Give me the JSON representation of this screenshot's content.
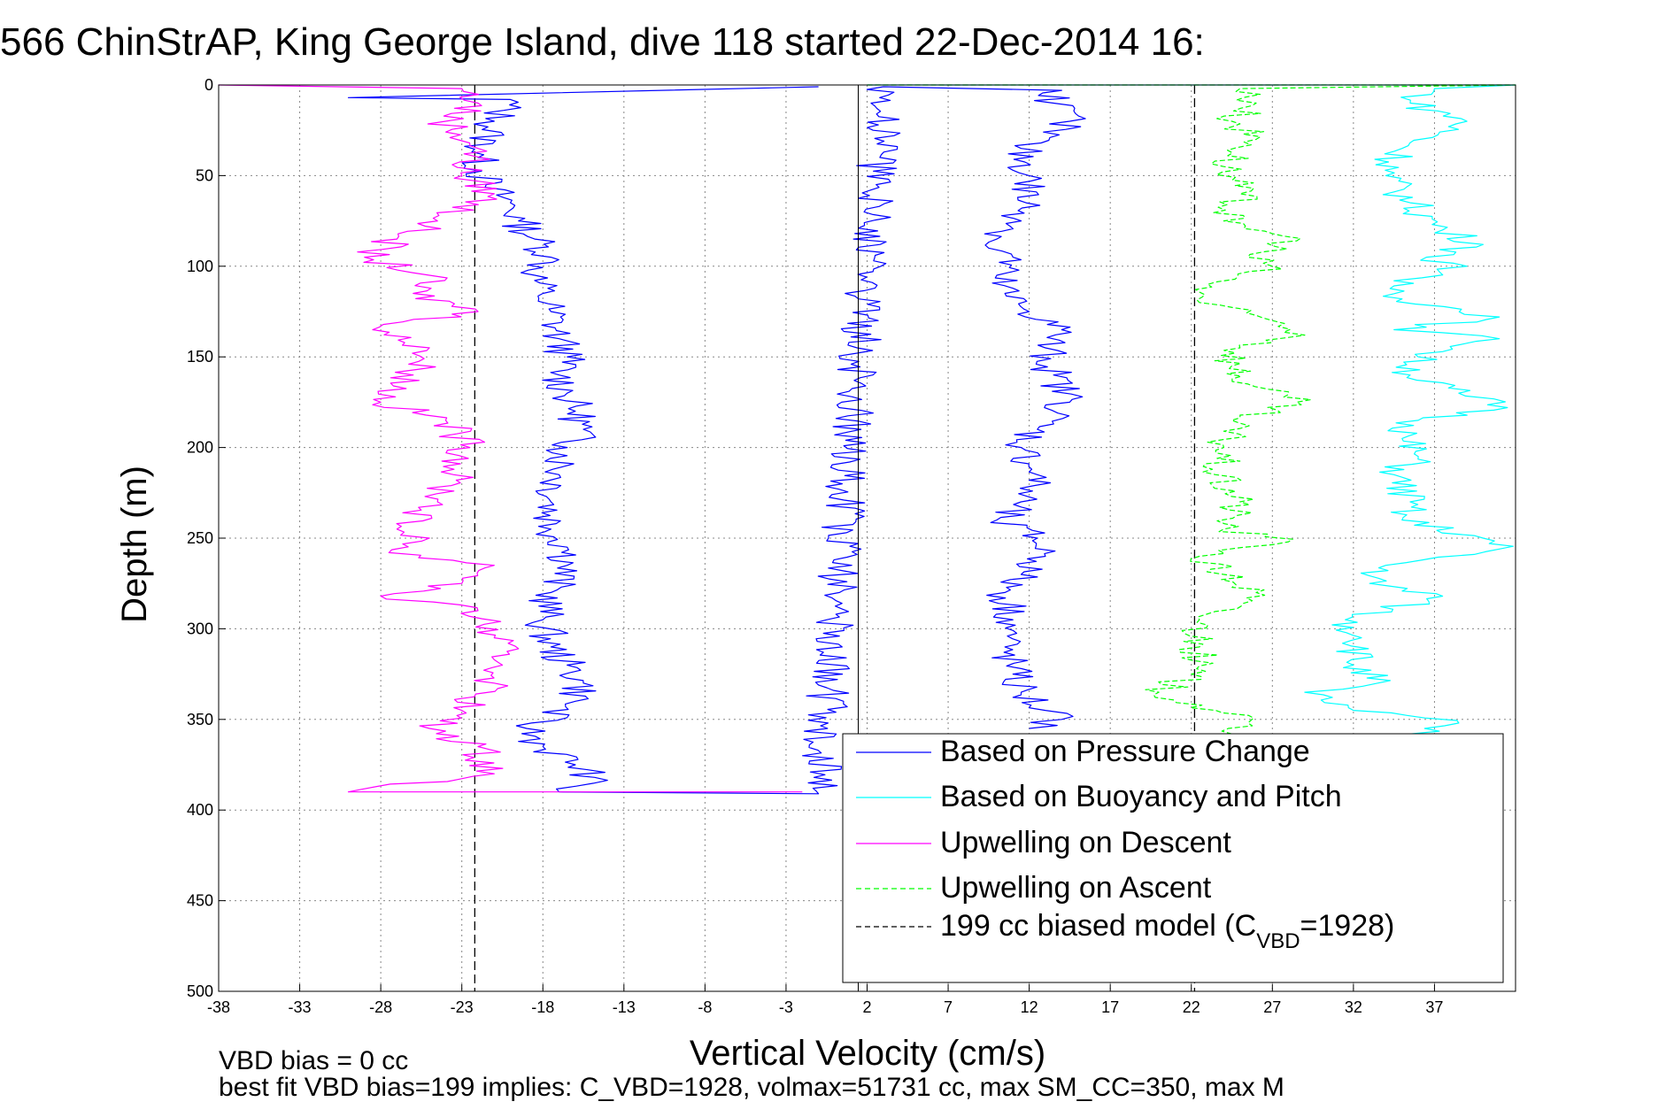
{
  "chart_data": {
    "type": "line",
    "title": "566 ChinStrAP, King George Island, dive 118 started 22-Dec-2014 16:",
    "xlabel": "Vertical Velocity (cm/s)",
    "ylabel": "Depth (m)",
    "xlim": [
      -38,
      42
    ],
    "ylim": [
      0,
      500
    ],
    "y_reversed": true,
    "x_ticks": [
      -38,
      -33,
      -28,
      -23,
      -18,
      -13,
      -8,
      -3,
      2,
      7,
      12,
      17,
      22,
      27,
      32,
      37
    ],
    "y_ticks": [
      0,
      50,
      100,
      150,
      200,
      250,
      300,
      350,
      400,
      450,
      500
    ],
    "grid": true,
    "legend_position": "bottom-right",
    "series": [
      {
        "name": "Based on Pressure Change",
        "color": "#0000ff",
        "style": "solid",
        "points": [
          [
            -1,
            1
          ],
          [
            -30,
            7
          ],
          [
            -20,
            8
          ],
          [
            -21,
            20
          ],
          [
            -22,
            40
          ],
          [
            -21.5,
            55
          ],
          [
            -20,
            65
          ],
          [
            -19.5,
            75
          ],
          [
            -18.5,
            85
          ],
          [
            -17.5,
            95
          ],
          [
            -18.5,
            105
          ],
          [
            -18,
            115
          ],
          [
            -17.5,
            125
          ],
          [
            -17,
            140
          ],
          [
            -16.5,
            150
          ],
          [
            -17,
            160
          ],
          [
            -16.5,
            170
          ],
          [
            -16,
            180
          ],
          [
            -15.5,
            190
          ],
          [
            -16.5,
            200
          ],
          [
            -17,
            215
          ],
          [
            -17.5,
            230
          ],
          [
            -17.5,
            245
          ],
          [
            -16.5,
            255
          ],
          [
            -16.5,
            265
          ],
          [
            -17.5,
            280
          ],
          [
            -18,
            295
          ],
          [
            -17.5,
            310
          ],
          [
            -16.5,
            320
          ],
          [
            -15.5,
            330
          ],
          [
            -16,
            340
          ],
          [
            -19,
            355
          ],
          [
            -18,
            365
          ],
          [
            -16,
            375
          ],
          [
            -14.8,
            382
          ],
          [
            -17,
            390
          ],
          [
            -1,
            391
          ],
          [
            3,
            1
          ],
          [
            14,
            3
          ],
          [
            13.5,
            10
          ],
          [
            14.5,
            20
          ],
          [
            11.5,
            35
          ],
          [
            12,
            50
          ],
          [
            11.8,
            65
          ],
          [
            11.5,
            75
          ],
          [
            10,
            85
          ],
          [
            9.5,
            90
          ],
          [
            11,
            95
          ],
          [
            10,
            105
          ],
          [
            10.5,
            115
          ],
          [
            12,
            125
          ],
          [
            14,
            135
          ],
          [
            13,
            145
          ],
          [
            13.5,
            160
          ],
          [
            14.5,
            175
          ],
          [
            12.5,
            190
          ],
          [
            11.5,
            200
          ],
          [
            12.5,
            215
          ],
          [
            11.5,
            230
          ],
          [
            10,
            240
          ],
          [
            12.5,
            250
          ],
          [
            13,
            260
          ],
          [
            11.5,
            270
          ],
          [
            10.5,
            280
          ],
          [
            11,
            295
          ],
          [
            10.5,
            310
          ],
          [
            11,
            325
          ],
          [
            11.5,
            335
          ],
          [
            13,
            345
          ],
          [
            14,
            350
          ],
          [
            12,
            355
          ]
        ]
      },
      {
        "name": "Based on Buoyancy and Pitch",
        "color": "#00ffff",
        "style": "solid",
        "points": [
          [
            2,
            0
          ],
          [
            42,
            0
          ],
          [
            37,
            2
          ],
          [
            35.5,
            10
          ],
          [
            39,
            20
          ],
          [
            35,
            35
          ],
          [
            34,
            50
          ],
          [
            35.5,
            65
          ],
          [
            37.5,
            80
          ],
          [
            40,
            88
          ],
          [
            36.5,
            95
          ],
          [
            39,
            100
          ],
          [
            34.5,
            108
          ],
          [
            35,
            118
          ],
          [
            41,
            128
          ],
          [
            34.5,
            135
          ],
          [
            41,
            140
          ],
          [
            36,
            150
          ],
          [
            35.5,
            160
          ],
          [
            38.5,
            170
          ],
          [
            41.5,
            178
          ],
          [
            36,
            185
          ],
          [
            35,
            195
          ],
          [
            36,
            205
          ],
          [
            34.5,
            215
          ],
          [
            35.5,
            230
          ],
          [
            35,
            240
          ],
          [
            40,
            250
          ],
          [
            41,
            256
          ],
          [
            34,
            265
          ],
          [
            33,
            275
          ],
          [
            37.5,
            282
          ],
          [
            31.5,
            295
          ],
          [
            32.5,
            305
          ],
          [
            32,
            320
          ],
          [
            33.5,
            330
          ],
          [
            29,
            335
          ],
          [
            32,
            345
          ],
          [
            38.5,
            352
          ],
          [
            35.5,
            358
          ]
        ]
      },
      {
        "name": "Upwelling on Descent",
        "color": "#ff00ff",
        "style": "solid",
        "points": [
          [
            -38,
            0
          ],
          [
            -23,
            2
          ],
          [
            -22,
            10
          ],
          [
            -24,
            20
          ],
          [
            -22,
            35
          ],
          [
            -23,
            50
          ],
          [
            -21,
            60
          ],
          [
            -24.5,
            75
          ],
          [
            -27,
            85
          ],
          [
            -29,
            95
          ],
          [
            -25,
            105
          ],
          [
            -26,
            115
          ],
          [
            -22,
            125
          ],
          [
            -28.5,
            135
          ],
          [
            -25,
            145
          ],
          [
            -26,
            160
          ],
          [
            -28,
            175
          ],
          [
            -24,
            185
          ],
          [
            -22.5,
            200
          ],
          [
            -23.5,
            215
          ],
          [
            -24.5,
            230
          ],
          [
            -27,
            245
          ],
          [
            -25,
            250
          ],
          [
            -27.5,
            258
          ],
          [
            -21,
            265
          ],
          [
            -23,
            275
          ],
          [
            -28,
            282
          ],
          [
            -22,
            290
          ],
          [
            -21,
            305
          ],
          [
            -20.5,
            320
          ],
          [
            -21,
            330
          ],
          [
            -23,
            345
          ],
          [
            -25,
            355
          ],
          [
            -22,
            365
          ],
          [
            -21,
            380
          ],
          [
            -30,
            390
          ],
          [
            -2,
            390
          ]
        ]
      },
      {
        "name": "Upwelling on Ascent",
        "color": "#00ff00",
        "style": "dashed",
        "points": [
          [
            2,
            0
          ],
          [
            42,
            0
          ],
          [
            25,
            2
          ],
          [
            26,
            10
          ],
          [
            24.5,
            20
          ],
          [
            26,
            30
          ],
          [
            24,
            45
          ],
          [
            25,
            60
          ],
          [
            24,
            75
          ],
          [
            27,
            82
          ],
          [
            28.5,
            86
          ],
          [
            25.5,
            95
          ],
          [
            27,
            100
          ],
          [
            23,
            110
          ],
          [
            22.5,
            120
          ],
          [
            27,
            130
          ],
          [
            29,
            138
          ],
          [
            25,
            145
          ],
          [
            24.5,
            155
          ],
          [
            25.5,
            165
          ],
          [
            28.5,
            175
          ],
          [
            24.5,
            185
          ],
          [
            24,
            200
          ],
          [
            23.5,
            215
          ],
          [
            25,
            230
          ],
          [
            24,
            245
          ],
          [
            28,
            252
          ],
          [
            22.5,
            260
          ],
          [
            24,
            270
          ],
          [
            26,
            280
          ],
          [
            22.5,
            295
          ],
          [
            22.5,
            310
          ],
          [
            22,
            325
          ],
          [
            20,
            335
          ],
          [
            23.5,
            345
          ],
          [
            25.5,
            352
          ],
          [
            24.5,
            358
          ]
        ]
      }
    ],
    "reference_line": {
      "name": "199 cc biased model (C_VBD=1928)",
      "color": "#000000",
      "style": "dashed",
      "x_values": [
        -22.2,
        22.2
      ]
    },
    "legend": [
      {
        "label": "Based on Pressure Change",
        "color": "#0000ff",
        "style": "solid"
      },
      {
        "label": "Based on Buoyancy and Pitch",
        "color": "#00ffff",
        "style": "solid"
      },
      {
        "label": "Upwelling on Descent",
        "color": "#ff00ff",
        "style": "solid"
      },
      {
        "label": "Upwelling on Ascent",
        "color": "#00ff00",
        "style": "dashed"
      },
      {
        "label": "199 cc biased model (C",
        "sub": "VBD",
        "suffix": "=1928)",
        "color": "#000000",
        "style": "dashed"
      }
    ]
  },
  "footer": {
    "line1": "VBD bias = 0 cc",
    "line2": "best fit VBD bias=199 implies: C_VBD=1928, volmax=51731 cc, max SM_CC=350, max M"
  }
}
